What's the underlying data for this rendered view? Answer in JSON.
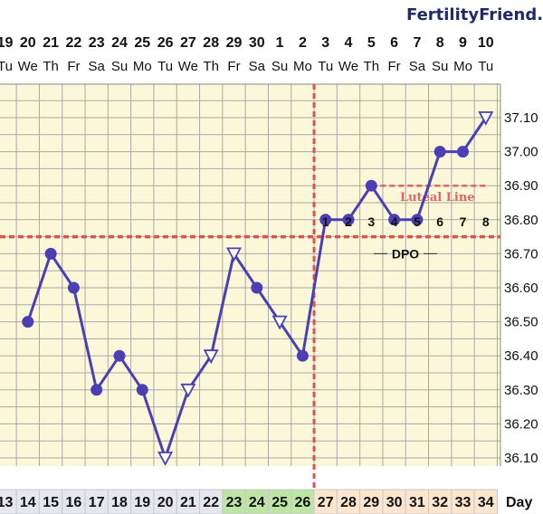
{
  "brand": "FertilityFriend.com",
  "chart_data": {
    "type": "line",
    "dates": [
      "19",
      "20",
      "21",
      "22",
      "23",
      "24",
      "25",
      "26",
      "27",
      "28",
      "29",
      "30",
      "1",
      "2",
      "3",
      "4",
      "5",
      "6",
      "7",
      "8",
      "9",
      "10"
    ],
    "weekdays": [
      "Tu",
      "We",
      "Th",
      "Fr",
      "Sa",
      "Su",
      "Mo",
      "Tu",
      "We",
      "Th",
      "Fr",
      "Sa",
      "Su",
      "Mo",
      "Tu",
      "We",
      "Th",
      "Fr",
      "Sa",
      "Su",
      "Mo",
      "Tu"
    ],
    "cycle_days": [
      13,
      14,
      15,
      16,
      17,
      18,
      19,
      20,
      21,
      22,
      23,
      24,
      25,
      26,
      27,
      28,
      29,
      30,
      31,
      32,
      33,
      34
    ],
    "cycle_day_label": "Day",
    "temperatures": [
      null,
      36.5,
      36.7,
      36.6,
      36.3,
      36.4,
      36.3,
      36.1,
      36.3,
      36.4,
      36.7,
      36.6,
      36.5,
      36.4,
      36.8,
      36.8,
      36.9,
      36.8,
      36.8,
      37.0,
      37.0,
      37.1
    ],
    "markers": [
      "",
      "circle",
      "circle",
      "circle",
      "circle",
      "circle",
      "circle",
      "triangle",
      "triangle",
      "triangle",
      "triangle",
      "circle",
      "triangle",
      "circle",
      "circle",
      "circle",
      "circle",
      "circle",
      "circle",
      "circle",
      "circle",
      "triangle"
    ],
    "y_ticks": [
      "37.10",
      "37.00",
      "36.90",
      "36.80",
      "36.70",
      "36.60",
      "36.50",
      "36.40",
      "36.30",
      "36.20",
      "36.10"
    ],
    "ylim": [
      36.05,
      37.15
    ],
    "coverline": 36.75,
    "ovulation_cycle_day": 26,
    "luteal_line": {
      "value": 36.9,
      "label": "Luteal Line",
      "start_cycle_day": 29
    },
    "dpo_label": "DPO",
    "dpo_numbers": [
      1,
      2,
      3,
      4,
      5,
      6,
      7,
      8
    ],
    "dpo_start_cycle_day": 27,
    "fertile_cycle_days": [
      23,
      24,
      25,
      26
    ],
    "post_cycle_days": [
      27,
      28,
      29,
      30,
      31,
      32,
      33,
      34
    ],
    "colors": {
      "line": "#4b3fb3",
      "coverline": "#d9534f",
      "grid": "#a9a9a9",
      "background": "#fbf8d9",
      "fertile": "#bfe5a6",
      "post": "#fde5cf",
      "pre": "#e6e6ee",
      "luteal": "#e06666"
    }
  }
}
